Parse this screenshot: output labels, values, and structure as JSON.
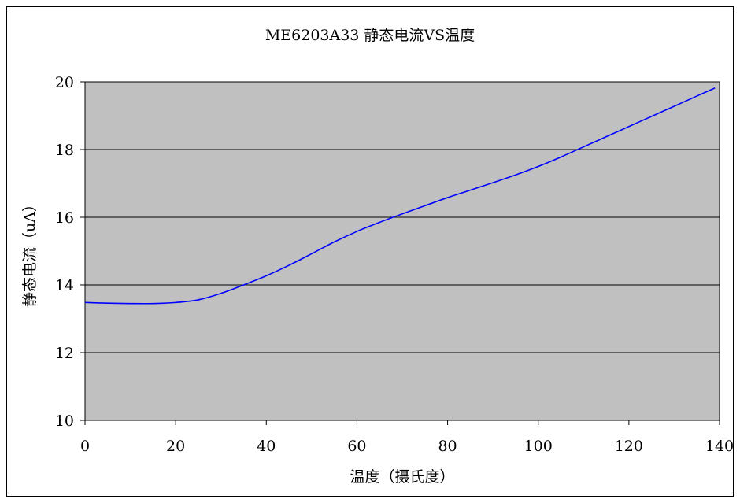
{
  "chart_data": {
    "type": "line",
    "title": "ME6203A33 静态电流VS温度",
    "xlabel": "温度（摄氏度）",
    "ylabel": "静态电流（uA）",
    "xlim": [
      0,
      140
    ],
    "ylim": [
      10,
      20
    ],
    "xticks": [
      0,
      20,
      40,
      60,
      80,
      100,
      120,
      140
    ],
    "yticks": [
      10,
      12,
      14,
      16,
      18,
      20
    ],
    "grid": "horizontal",
    "legend": "none",
    "series": [
      {
        "color": "#0000ff",
        "x": [
          0,
          5,
          10,
          15,
          20,
          25,
          30,
          35,
          40,
          45,
          50,
          55,
          60,
          65,
          70,
          75,
          80,
          85,
          90,
          95,
          100,
          105,
          110,
          115,
          120,
          125,
          130,
          135,
          139
        ],
        "y": [
          13.48,
          13.46,
          13.45,
          13.45,
          13.48,
          13.56,
          13.75,
          14.0,
          14.27,
          14.58,
          14.92,
          15.27,
          15.58,
          15.85,
          16.1,
          16.34,
          16.58,
          16.8,
          17.02,
          17.25,
          17.5,
          17.78,
          18.08,
          18.38,
          18.68,
          18.98,
          19.28,
          19.58,
          19.82
        ]
      }
    ],
    "colors": {
      "plot_background": "#c0c0c0",
      "gridline": "#000000",
      "frame": "#000000"
    }
  }
}
